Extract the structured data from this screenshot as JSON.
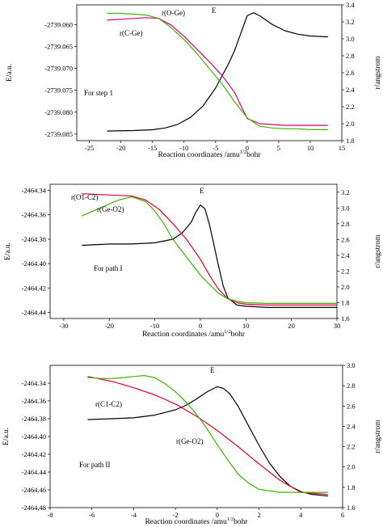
{
  "chart_data": [
    {
      "type": "line",
      "note": "For step 1",
      "xlabel": "Reaction coordinates /amu^{1/2}bohr",
      "ylabel_left": "E/a.u.",
      "ylabel_right": "r/angstrom",
      "xlim": [
        -27,
        15
      ],
      "xticks": [
        -25,
        -20,
        -15,
        -10,
        -5,
        0,
        5,
        10,
        15
      ],
      "ylim_left": [
        -2739.0865,
        -2739.0555
      ],
      "yticks_left": [
        -2739.06,
        -2739.065,
        -2739.07,
        -2739.075,
        -2739.08,
        -2739.085
      ],
      "ytick_labels_left": [
        "-2739.060",
        "-2739.065",
        "-2739.070",
        "-2739.075",
        "-2739.080",
        "-2739.085"
      ],
      "ylim_right": [
        1.8,
        3.4
      ],
      "yticks_right": [
        1.8,
        2.0,
        2.2,
        2.4,
        2.6,
        2.8,
        3.0,
        3.2,
        3.4
      ],
      "ytick_labels_right": [
        "1.8",
        "2.0",
        "2.2",
        "2.4",
        "2.6",
        "2.8",
        "3.0",
        "3.2",
        "3.4"
      ],
      "series": [
        {
          "name": "E",
          "color": "#000000",
          "axis": "left",
          "x": [
            -22.2,
            -18,
            -15,
            -13,
            -11,
            -9,
            -7,
            -5,
            -3,
            -2,
            -1,
            0,
            1,
            2,
            4,
            6,
            8,
            10,
            12.8
          ],
          "y": [
            -2739.0843,
            -2739.0842,
            -2739.084,
            -2739.0836,
            -2739.0828,
            -2739.0812,
            -2739.0786,
            -2739.0745,
            -2739.0691,
            -2739.066,
            -2739.062,
            -2739.058,
            -2739.0573,
            -2739.058,
            -2739.06,
            -2739.0614,
            -2739.0622,
            -2739.0626,
            -2739.0628
          ]
        },
        {
          "name": "r(O-Ge)",
          "color": "#e0007a",
          "axis": "right",
          "x": [
            -22.2,
            -20,
            -18,
            -16,
            -14,
            -12,
            -10,
            -8,
            -6,
            -4,
            -2,
            0,
            2,
            4,
            6,
            8,
            10,
            12.8
          ],
          "y": [
            3.22,
            3.23,
            3.24,
            3.25,
            3.24,
            3.16,
            3.03,
            2.88,
            2.73,
            2.57,
            2.37,
            2.06,
            2.0,
            1.99,
            1.98,
            1.98,
            1.98,
            1.98
          ]
        },
        {
          "name": "r(C-Ge)",
          "color": "#3ab600",
          "axis": "right",
          "x": [
            -22.2,
            -20,
            -18,
            -16,
            -14,
            -12,
            -10,
            -8,
            -6,
            -4,
            -2,
            0,
            2,
            4,
            6,
            8,
            10,
            12.8
          ],
          "y": [
            3.3,
            3.3,
            3.29,
            3.28,
            3.24,
            3.13,
            2.99,
            2.83,
            2.65,
            2.47,
            2.26,
            2.07,
            1.97,
            1.95,
            1.94,
            1.94,
            1.93,
            1.93
          ]
        }
      ],
      "annotations": [
        "E",
        "r(O-Ge)",
        "r(C-Ge)"
      ]
    },
    {
      "type": "line",
      "note": "For path I",
      "xlabel": "Reaction coordinates /amu^{1/2}bohr",
      "ylabel_left": "E/a.u.",
      "ylabel_right": "r/angstrom",
      "xlim": [
        -33,
        30
      ],
      "xticks": [
        -30,
        -20,
        -10,
        0,
        10,
        20,
        30
      ],
      "ylim_left": [
        -2464.445,
        -2464.335
      ],
      "yticks_left": [
        -2464.34,
        -2464.36,
        -2464.38,
        -2464.4,
        -2464.42,
        -2464.44
      ],
      "ytick_labels_left": [
        "-2464.34",
        "-2464.36",
        "-2464.38",
        "-2464.40",
        "-2464.42",
        "-2464.44"
      ],
      "ylim_right": [
        1.6,
        3.3
      ],
      "yticks_right": [
        1.6,
        1.8,
        2.0,
        2.2,
        2.4,
        2.6,
        2.8,
        3.0,
        3.2
      ],
      "ytick_labels_right": [
        "1.6",
        "1.8",
        "2.0",
        "2.2",
        "2.4",
        "2.6",
        "2.8",
        "3.0",
        "3.2"
      ],
      "series": [
        {
          "name": "E",
          "color": "#000000",
          "axis": "left",
          "x": [
            -26,
            -20,
            -15,
            -10,
            -6,
            -4,
            -2,
            -1,
            0,
            1,
            2,
            3,
            4,
            5,
            6,
            8,
            10,
            15,
            20,
            30
          ],
          "y": [
            -2464.385,
            -2464.384,
            -2464.384,
            -2464.383,
            -2464.38,
            -2464.375,
            -2464.366,
            -2464.358,
            -2464.352,
            -2464.355,
            -2464.368,
            -2464.385,
            -2464.402,
            -2464.418,
            -2464.428,
            -2464.434,
            -2464.435,
            -2464.436,
            -2464.436,
            -2464.436
          ]
        },
        {
          "name": "r(O1-C2)",
          "color": "#e8002e",
          "axis": "right",
          "x": [
            -26,
            -22,
            -18,
            -15,
            -12,
            -9,
            -6,
            -3,
            0,
            2,
            4,
            6,
            8,
            10,
            15,
            20,
            30
          ],
          "y": [
            3.18,
            3.17,
            3.16,
            3.15,
            3.1,
            2.98,
            2.8,
            2.6,
            2.35,
            2.15,
            1.97,
            1.85,
            1.8,
            1.78,
            1.77,
            1.77,
            1.77
          ]
        },
        {
          "name": "r(Ge-O2)",
          "color": "#3ab600",
          "axis": "right",
          "x": [
            -26,
            -22,
            -18,
            -15,
            -12,
            -10,
            -8,
            -6,
            -4,
            -2,
            0,
            2,
            4,
            6,
            8,
            10,
            15,
            20,
            30
          ],
          "y": [
            2.9,
            3.0,
            3.1,
            3.14,
            3.08,
            2.96,
            2.8,
            2.6,
            2.45,
            2.3,
            2.15,
            2.03,
            1.92,
            1.85,
            1.82,
            1.8,
            1.79,
            1.79,
            1.79
          ]
        }
      ],
      "annotations": [
        "E",
        "r(O1-C2)",
        "r(Ge-O2)"
      ]
    },
    {
      "type": "line",
      "note": "For path II",
      "xlabel": "Reaction coordinates /amu^{1/2}bohr",
      "ylabel_left": "E/a.u.",
      "ylabel_right": "r/angstrom",
      "xlim": [
        -8,
        6
      ],
      "xticks": [
        -8,
        -6,
        -4,
        -2,
        0,
        2,
        4,
        6
      ],
      "ylim_left": [
        -2464.48,
        -2464.32
      ],
      "yticks_left": [
        -2464.34,
        -2464.36,
        -2464.38,
        -2464.4,
        -2464.42,
        -2464.44,
        -2464.46,
        -2464.48
      ],
      "ytick_labels_left": [
        "-2464.34",
        "-2464.36",
        "-2464.38",
        "-2464.40",
        "-2464.42",
        "-2464.44",
        "-2464.46",
        "-2464.48"
      ],
      "ylim_right": [
        1.6,
        3.0
      ],
      "yticks_right": [
        1.6,
        1.8,
        2.0,
        2.2,
        2.4,
        2.6,
        2.8,
        3.0
      ],
      "ytick_labels_right": [
        "1.6",
        "1.8",
        "2.0",
        "2.2",
        "2.4",
        "2.6",
        "2.8",
        "3.0"
      ],
      "series": [
        {
          "name": "E",
          "color": "#000000",
          "axis": "left",
          "x": [
            -6.2,
            -5,
            -4,
            -3,
            -2,
            -1.5,
            -1,
            -0.5,
            0,
            0.3,
            0.6,
            1,
            1.5,
            2,
            2.5,
            3,
            3.5,
            4,
            4.5,
            5.3
          ],
          "y": [
            -2464.381,
            -2464.38,
            -2464.379,
            -2464.376,
            -2464.37,
            -2464.365,
            -2464.358,
            -2464.35,
            -2464.344,
            -2464.346,
            -2464.352,
            -2464.366,
            -2464.388,
            -2464.41,
            -2464.43,
            -2464.445,
            -2464.456,
            -2464.462,
            -2464.465,
            -2464.467
          ]
        },
        {
          "name": "r(C1-C2)",
          "color": "#e8002e",
          "axis": "right",
          "x": [
            -6.2,
            -5,
            -4,
            -3,
            -2,
            -1,
            0,
            1,
            2,
            3,
            4,
            5.3
          ],
          "y": [
            2.89,
            2.84,
            2.78,
            2.71,
            2.62,
            2.5,
            2.36,
            2.2,
            2.03,
            1.87,
            1.75,
            1.73
          ]
        },
        {
          "name": "r(Ge-O2)",
          "color": "#3ab600",
          "axis": "right",
          "x": [
            -6.2,
            -5.5,
            -5,
            -4.5,
            -4,
            -3.5,
            -3,
            -2.5,
            -2,
            -1.5,
            -1,
            -0.5,
            0,
            0.5,
            1,
            1.5,
            2,
            3,
            4,
            5.3
          ],
          "y": [
            2.88,
            2.87,
            2.87,
            2.88,
            2.89,
            2.9,
            2.88,
            2.82,
            2.74,
            2.64,
            2.52,
            2.38,
            2.22,
            2.07,
            1.93,
            1.84,
            1.78,
            1.75,
            1.75,
            1.75
          ]
        }
      ],
      "annotations": [
        "E",
        "r(C1-C2)",
        "r(Ge-O2)"
      ]
    }
  ]
}
